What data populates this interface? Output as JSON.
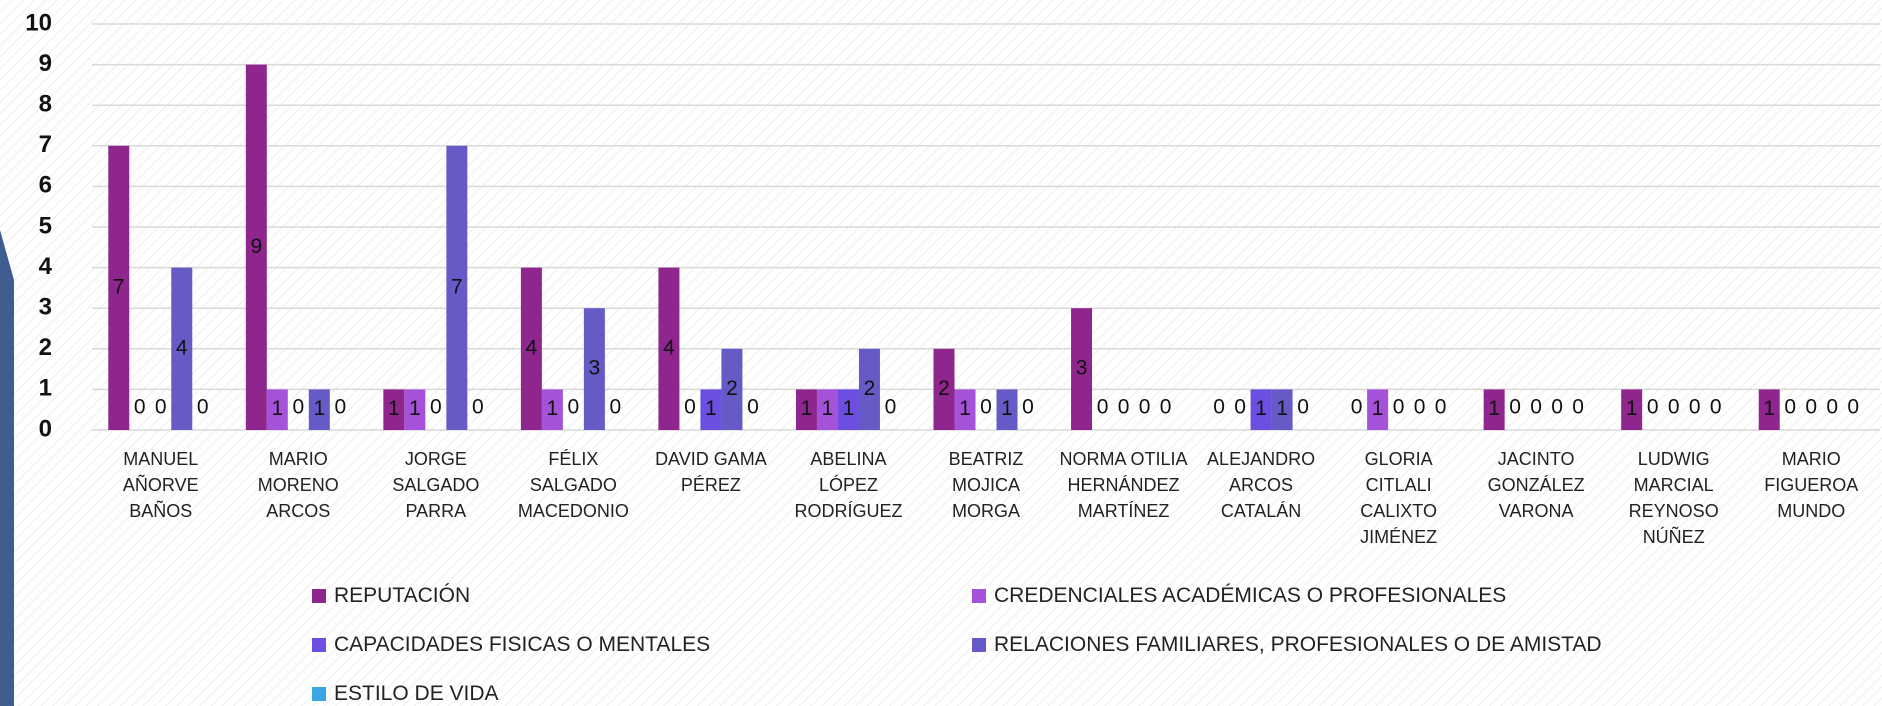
{
  "chart_data": {
    "type": "bar",
    "categories": [
      "MANUEL AÑORVE BAÑOS",
      "MARIO MORENO ARCOS",
      "JORGE SALGADO PARRA",
      "FÉLIX SALGADO MACEDONIO",
      "DAVID GAMA PÉREZ",
      "ABELINA LÓPEZ RODRÍGUEZ",
      "BEATRIZ MOJICA MORGA",
      "NORMA OTILIA HERNÁNDEZ MARTÍNEZ",
      "ALEJANDRO ARCOS CATALÁN",
      "GLORIA CITLALI CALIXTO JIMÉNEZ",
      "JACINTO GONZÁLEZ VARONA",
      "LUDWIG MARCIAL REYNOSO NÚÑEZ",
      "MARIO FIGUEROA MUNDO"
    ],
    "series": [
      {
        "name": "REPUTACIÓN",
        "color": "#8f268e",
        "values": [
          7,
          9,
          1,
          4,
          4,
          1,
          2,
          3,
          0,
          0,
          1,
          1,
          1
        ]
      },
      {
        "name": "CREDENCIALES ACADÉMICAS O PROFESIONALES",
        "color": "#a452d9",
        "values": [
          0,
          1,
          1,
          1,
          0,
          1,
          1,
          0,
          0,
          1,
          0,
          0,
          0
        ]
      },
      {
        "name": "CAPACIDADES FISICAS O MENTALES",
        "color": "#6c4ee0",
        "values": [
          0,
          0,
          0,
          0,
          1,
          1,
          0,
          0,
          1,
          0,
          0,
          0,
          0
        ]
      },
      {
        "name": "RELACIONES FAMILIARES, PROFESIONALES O DE AMISTAD",
        "color": "#665bc6",
        "values": [
          4,
          1,
          7,
          3,
          2,
          2,
          1,
          0,
          1,
          0,
          0,
          0,
          0
        ]
      },
      {
        "name": "ESTILO DE VIDA",
        "color": "#3aa6e6",
        "values": [
          0,
          0,
          0,
          0,
          0,
          0,
          0,
          0,
          0,
          0,
          0,
          0,
          0
        ]
      }
    ],
    "ylim": [
      0,
      10
    ],
    "yticks": [
      0,
      1,
      2,
      3,
      4,
      5,
      6,
      7,
      8,
      9,
      10
    ],
    "grid": true,
    "legend": "bottom"
  }
}
